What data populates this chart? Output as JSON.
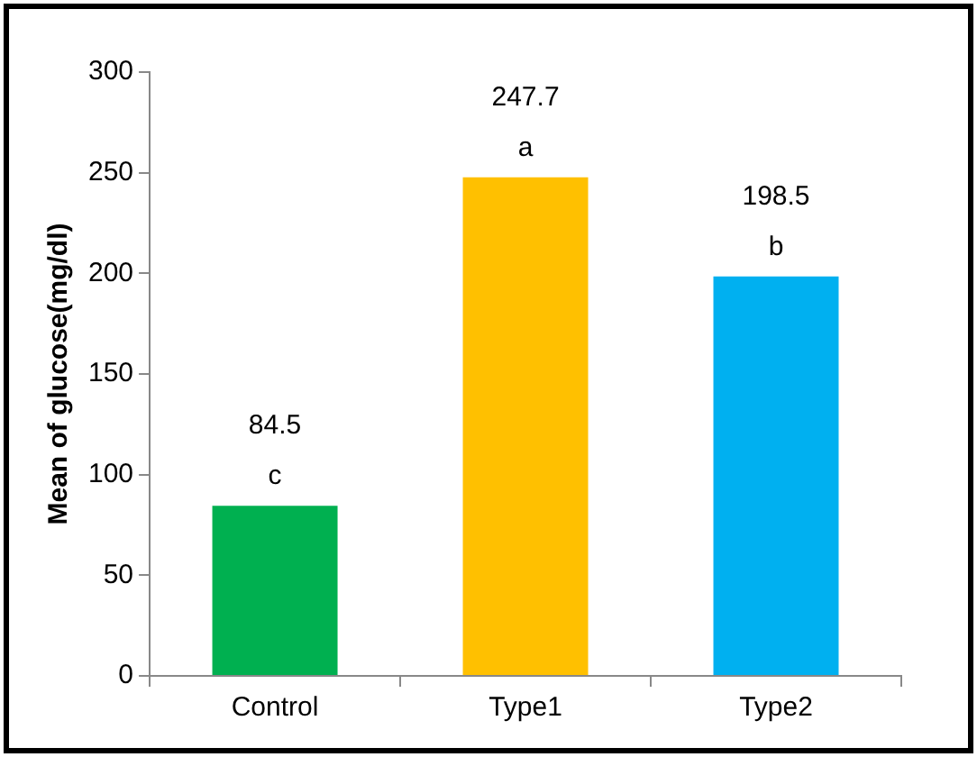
{
  "chart_data": {
    "type": "bar",
    "ylabel": "Mean of glucose(mg/dl)",
    "categories": [
      "Control",
      "Type1",
      "Type2"
    ],
    "values": [
      84.5,
      247.7,
      198.5
    ],
    "colors": [
      "#00b050",
      "#ffc000",
      "#00b0f0"
    ],
    "ylim": [
      0,
      300
    ],
    "yticks": [
      0,
      50,
      100,
      150,
      200,
      250,
      300
    ],
    "data_labels": true,
    "grid": false,
    "legend": false,
    "annotations": [
      {
        "text": "c",
        "x": "Control",
        "y": 84.5
      },
      {
        "text": "a",
        "x": "Type1",
        "y": 247.7
      },
      {
        "text": "b",
        "x": "Type2",
        "y": 198.5
      }
    ]
  }
}
